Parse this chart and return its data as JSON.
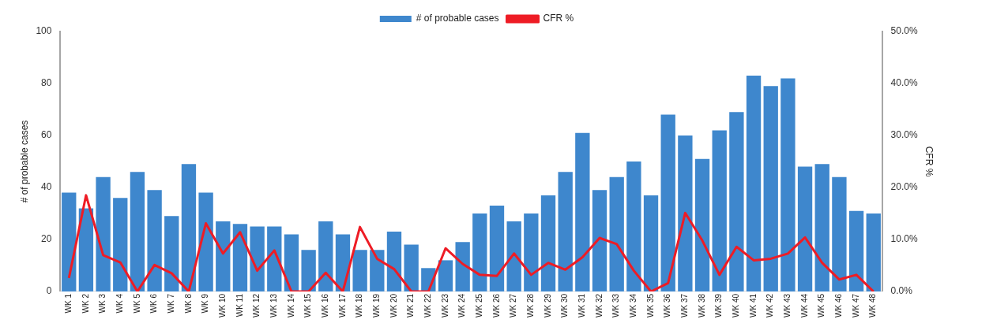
{
  "chart_data": {
    "type": "bar",
    "categories": [
      "WK 1",
      "WK 2",
      "WK 3",
      "WK 4",
      "WK 5",
      "WK 6",
      "WK 7",
      "WK 8",
      "WK 9",
      "WK 10",
      "WK 11",
      "WK 12",
      "WK 13",
      "WK 14",
      "WK 15",
      "WK 16",
      "WK 17",
      "WK 18",
      "WK 19",
      "WK 20",
      "WK 21",
      "WK 22",
      "WK 23",
      "WK 24",
      "WK 25",
      "WK 26",
      "WK 27",
      "WK 28",
      "WK 29",
      "WK 30",
      "WK 31",
      "WK 32",
      "WK 33",
      "WK 34",
      "WK 35",
      "WK 36",
      "WK 37",
      "WK 38",
      "WK 39",
      "WK 40",
      "WK 41",
      "WK 42",
      "WK 43",
      "WK 44",
      "WK 45",
      "WK 46",
      "WK 47",
      "WK 48"
    ],
    "series": [
      {
        "name": "# of probable cases",
        "color": "#3e87cd",
        "values": [
          38,
          32,
          44,
          36,
          46,
          39,
          29,
          49,
          38,
          27,
          26,
          25,
          25,
          22,
          16,
          27,
          22,
          16,
          16,
          23,
          18,
          9,
          12,
          19,
          30,
          33,
          27,
          30,
          37,
          46,
          61,
          39,
          44,
          50,
          37,
          68,
          60,
          51,
          62,
          69,
          83,
          79,
          82,
          48,
          49,
          44,
          31,
          30
        ]
      },
      {
        "name": "CFR %",
        "type": "line",
        "axis": "y2",
        "color": "#ee1c25",
        "values": [
          2.6,
          18.5,
          7,
          5.6,
          0,
          5.1,
          3.5,
          0,
          13.1,
          7.3,
          11.4,
          4,
          7.9,
          0,
          0,
          3.6,
          0,
          12.4,
          6.3,
          4.3,
          0,
          0,
          8.3,
          5.3,
          3.2,
          3,
          7.3,
          3.2,
          5.5,
          4.2,
          6.6,
          10.3,
          9.1,
          4,
          0,
          1.6,
          15.1,
          9.8,
          3.2,
          8.6,
          6,
          6.3,
          7.3,
          10.4,
          5.5,
          2.3,
          3.2,
          0
        ]
      }
    ],
    "ylabel": "# of probable cases",
    "y2label": "CFR %",
    "ylim": [
      0,
      100
    ],
    "yticks": [
      0,
      20,
      40,
      60,
      80,
      100
    ],
    "y2lim": [
      0,
      50
    ],
    "y2ticks": [
      {
        "value": 0,
        "label": "0.0%"
      },
      {
        "value": 10,
        "label": "10.0%"
      },
      {
        "value": 20,
        "label": "20.0%"
      },
      {
        "value": 30,
        "label": "30.0%"
      },
      {
        "value": 40,
        "label": "40.0%"
      },
      {
        "value": 50,
        "label": "50.0%"
      }
    ],
    "grid": false,
    "legend": "top",
    "marker": "none",
    "line_style": "solid"
  }
}
